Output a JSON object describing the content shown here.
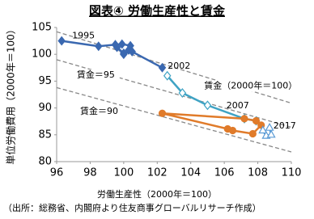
{
  "chart_data": {
    "type": "scatter",
    "title": "図表④ 労働生産性と賃金",
    "x_label": "労働生産性（2000年＝100）",
    "y_label": "単位労働費用（2000年＝100）",
    "source": "（出所：総務省、内閣府より住友商事グローバルリサーチ作成）",
    "xlim": [
      96,
      110
    ],
    "xticks": [
      96,
      98,
      100,
      102,
      104,
      106,
      108,
      110
    ],
    "ylim": [
      80,
      105
    ],
    "yticks": [
      80,
      85,
      90,
      95,
      100,
      105
    ],
    "reference_lines": [
      {
        "label": "賃金（2000年＝100）",
        "color": "#888888",
        "x": [
          96,
          110
        ],
        "values": [
          104.2,
          90.9
        ]
      },
      {
        "label": "賃金＝95",
        "color": "#888888",
        "x": [
          96,
          110
        ],
        "values": [
          99.0,
          86.4
        ]
      },
      {
        "label": "賃金＝90",
        "color": "#888888",
        "x": [
          96,
          110
        ],
        "values": [
          93.8,
          81.8
        ]
      }
    ],
    "series": [
      {
        "color": "#3a68b0",
        "marker": "diamond",
        "filled": true,
        "x": [
          96.3,
          98.5,
          99.5,
          99.9,
          100.4,
          100.3,
          100.0,
          99.6,
          100.0,
          100.5,
          102.3
        ],
        "values": [
          102.5,
          101.5,
          101.8,
          101.9,
          101.6,
          100.8,
          100.0,
          101.3,
          100.2,
          100.5,
          97.5
        ]
      },
      {
        "color": "#3fa3c4",
        "marker": "diamond",
        "filled": false,
        "x": [
          102.6,
          103.5,
          105.0,
          107.2,
          107.9
        ],
        "values": [
          96.0,
          92.8,
          90.5,
          88.0,
          87.6
        ]
      },
      {
        "color": "#e07b2a",
        "marker": "circle",
        "filled": true,
        "x": [
          107.9,
          107.2,
          102.3,
          106.2,
          106.5,
          107.7,
          108.2
        ],
        "values": [
          87.6,
          88.0,
          89.0,
          86.1,
          85.8,
          85.2,
          86.8
        ]
      },
      {
        "color": "#5b9bd5",
        "marker": "triangle",
        "filled": false,
        "x": [
          108.3,
          108.5,
          108.8,
          108.7
        ],
        "values": [
          85.8,
          84.8,
          85.0,
          86.3
        ]
      }
    ],
    "annotations": [
      {
        "text": "1995",
        "x": 97.6,
        "y": 103.4
      },
      {
        "text": "2002",
        "x": 103.3,
        "y": 97.8
      },
      {
        "text": "2007",
        "x": 106.8,
        "y": 90.4
      },
      {
        "text": "2017",
        "x": 109.6,
        "y": 86.6
      }
    ]
  }
}
